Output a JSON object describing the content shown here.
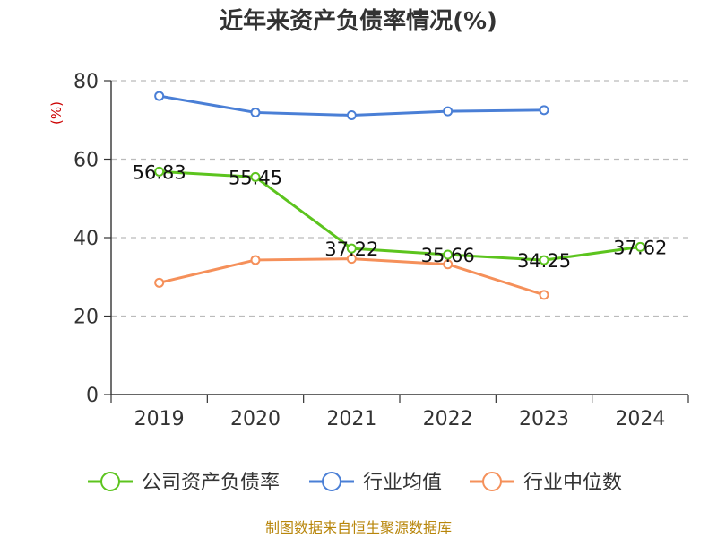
{
  "chart_data": {
    "type": "line",
    "title": "近年来资产负债率情况(%)",
    "ylabel": "(%)",
    "xlabel": "",
    "categories": [
      "2019",
      "2020",
      "2021",
      "2022",
      "2023",
      "2024"
    ],
    "ylim": [
      0,
      80
    ],
    "yticks": [
      "0",
      "20",
      "40",
      "60",
      "80"
    ],
    "grid": true,
    "legend_position": "bottom",
    "series": [
      {
        "name": "公司资产负债率",
        "color": "#5cc41e",
        "values": [
          56.83,
          55.45,
          37.22,
          35.66,
          34.25,
          37.62
        ],
        "labels": [
          "56.83",
          "55.45",
          "37.22",
          "35.66",
          "34.25",
          "37.62"
        ]
      },
      {
        "name": "行业均值",
        "color": "#4a7fd6",
        "values": [
          76.1,
          71.9,
          71.2,
          72.2,
          72.5,
          null
        ]
      },
      {
        "name": "行业中位数",
        "color": "#f5905a",
        "values": [
          28.5,
          34.3,
          34.6,
          33.2,
          25.4,
          null
        ]
      }
    ]
  },
  "source": "制图数据来自恒生聚源数据库"
}
